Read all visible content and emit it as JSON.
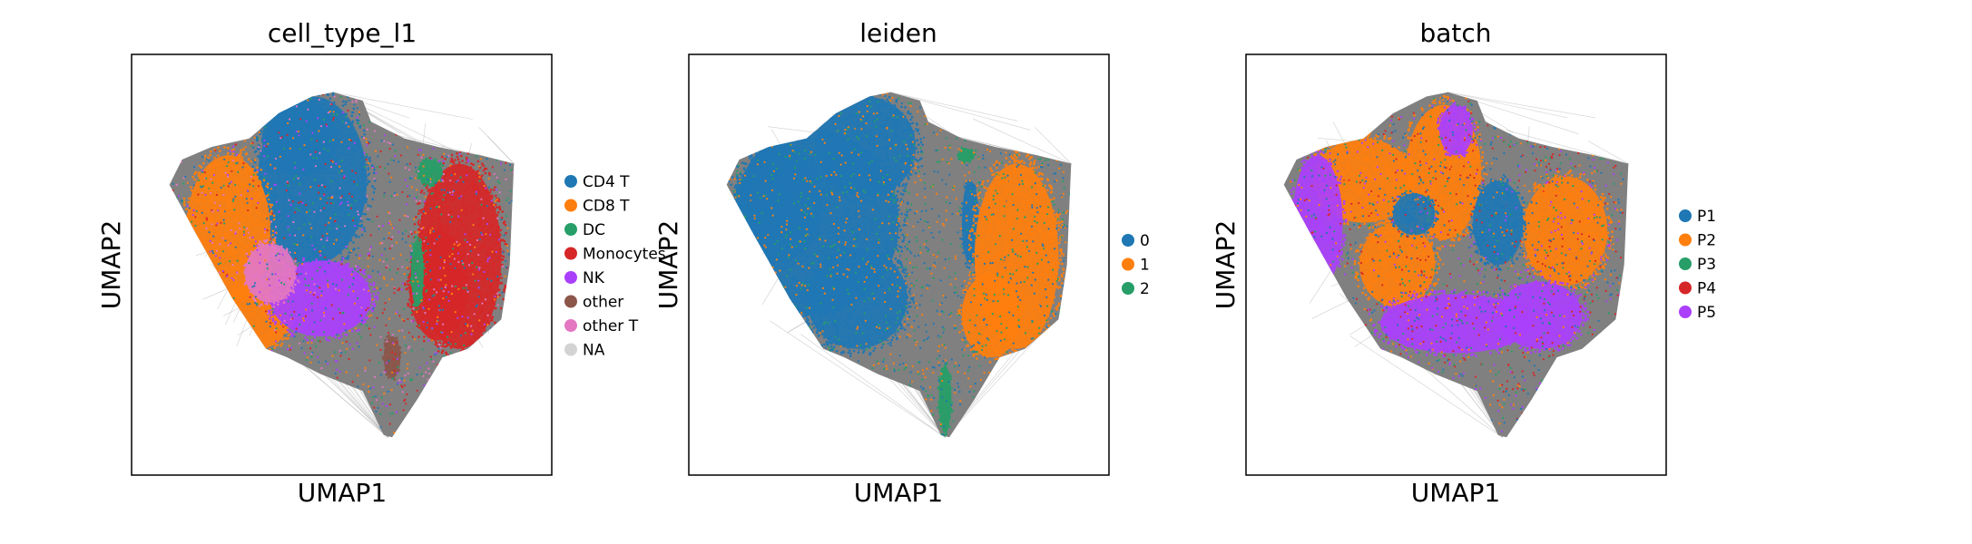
{
  "chart_data": [
    {
      "type": "scatter",
      "title": "cell_type_l1",
      "xlabel": "UMAP1",
      "ylabel": "UMAP2",
      "grid": false,
      "legend": "right",
      "legend_entries": [
        {
          "label": "CD4 T",
          "color": "#1f77b4"
        },
        {
          "label": "CD8 T",
          "color": "#ff7f0e"
        },
        {
          "label": "DC",
          "color": "#279e68"
        },
        {
          "label": "Monocytes",
          "color": "#d62728"
        },
        {
          "label": "NK",
          "color": "#aa40fc"
        },
        {
          "label": "other",
          "color": "#8c564b"
        },
        {
          "label": "other T",
          "color": "#e377c2"
        },
        {
          "label": "NA",
          "color": "#d3d3d3"
        }
      ]
    },
    {
      "type": "scatter",
      "title": "leiden",
      "xlabel": "UMAP1",
      "ylabel": "UMAP2",
      "grid": false,
      "legend": "right",
      "legend_entries": [
        {
          "label": "0",
          "color": "#1f77b4"
        },
        {
          "label": "1",
          "color": "#ff7f0e"
        },
        {
          "label": "2",
          "color": "#279e68"
        }
      ]
    },
    {
      "type": "scatter",
      "title": "batch",
      "xlabel": "UMAP1",
      "ylabel": "UMAP2",
      "grid": false,
      "legend": "right",
      "legend_entries": [
        {
          "label": "P1",
          "color": "#1f77b4"
        },
        {
          "label": "P2",
          "color": "#ff7f0e"
        },
        {
          "label": "P3",
          "color": "#279e68"
        },
        {
          "label": "P4",
          "color": "#d62728"
        },
        {
          "label": "P5",
          "color": "#aa40fc"
        }
      ]
    }
  ]
}
